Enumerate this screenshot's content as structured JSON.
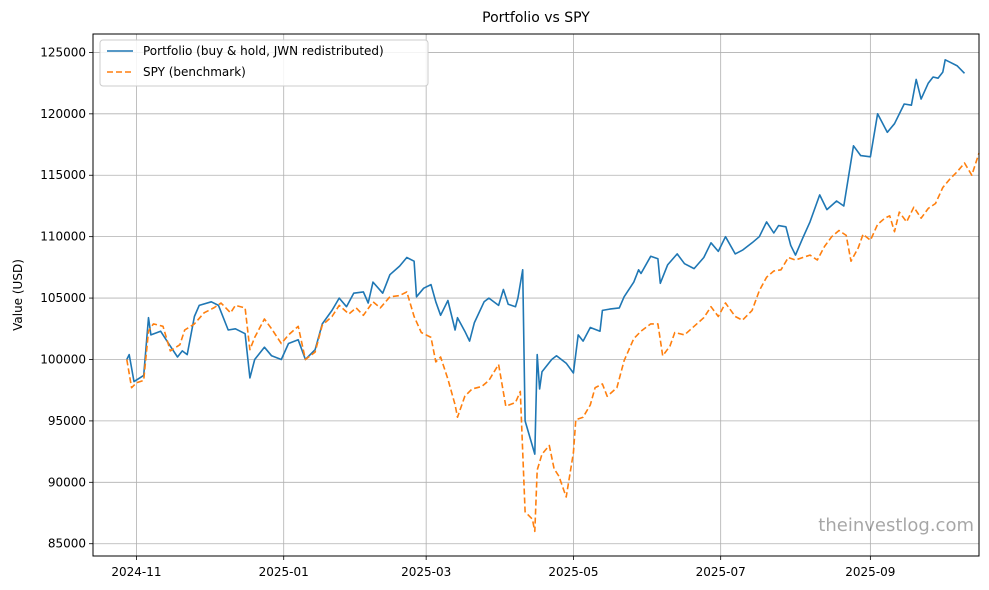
{
  "chart_data": {
    "type": "line",
    "title": "Portfolio vs SPY",
    "xlabel": "",
    "ylabel": "Value (USD)",
    "xlim": [
      "2024-10-14",
      "2025-10-16"
    ],
    "ylim": [
      84000,
      126500
    ],
    "grid": true,
    "legend_position": "upper-left",
    "x_ticks": [
      "2024-11-01",
      "2025-01-01",
      "2025-03-01",
      "2025-05-01",
      "2025-07-01",
      "2025-09-01"
    ],
    "x_tick_labels": [
      "2024-11",
      "2025-01",
      "2025-03",
      "2025-05",
      "2025-07",
      "2025-09"
    ],
    "y_ticks": [
      85000,
      90000,
      95000,
      100000,
      105000,
      110000,
      115000,
      120000,
      125000
    ],
    "y_tick_labels": [
      "85000",
      "90000",
      "95000",
      "100000",
      "105000",
      "110000",
      "115000",
      "120000",
      "125000"
    ],
    "series": [
      {
        "name": "Portfolio (buy & hold, JWN redistributed)",
        "color": "#1f77b4",
        "style": "solid",
        "points": [
          [
            "2024-10-28",
            100000
          ],
          [
            "2024-10-29",
            100400
          ],
          [
            "2024-10-31",
            98200
          ],
          [
            "2024-11-04",
            98700
          ],
          [
            "2024-11-06",
            103400
          ],
          [
            "2024-11-07",
            102000
          ],
          [
            "2024-11-11",
            102300
          ],
          [
            "2024-11-14",
            101400
          ],
          [
            "2024-11-18",
            100200
          ],
          [
            "2024-11-20",
            100700
          ],
          [
            "2024-11-22",
            100400
          ],
          [
            "2024-11-25",
            103500
          ],
          [
            "2024-11-27",
            104400
          ],
          [
            "2024-12-02",
            104700
          ],
          [
            "2024-12-05",
            104400
          ],
          [
            "2024-12-09",
            102400
          ],
          [
            "2024-12-12",
            102500
          ],
          [
            "2024-12-16",
            102100
          ],
          [
            "2024-12-18",
            98500
          ],
          [
            "2024-12-20",
            100000
          ],
          [
            "2024-12-24",
            101000
          ],
          [
            "2024-12-27",
            100300
          ],
          [
            "2024-12-31",
            100000
          ],
          [
            "2025-01-03",
            101300
          ],
          [
            "2025-01-07",
            101600
          ],
          [
            "2025-01-10",
            100000
          ],
          [
            "2025-01-14",
            100800
          ],
          [
            "2025-01-17",
            102900
          ],
          [
            "2025-01-21",
            104000
          ],
          [
            "2025-01-24",
            105000
          ],
          [
            "2025-01-27",
            104300
          ],
          [
            "2025-01-30",
            105400
          ],
          [
            "2025-02-03",
            105500
          ],
          [
            "2025-02-05",
            104600
          ],
          [
            "2025-02-07",
            106300
          ],
          [
            "2025-02-11",
            105400
          ],
          [
            "2025-02-14",
            106900
          ],
          [
            "2025-02-18",
            107600
          ],
          [
            "2025-02-21",
            108300
          ],
          [
            "2025-02-24",
            108000
          ],
          [
            "2025-02-25",
            105100
          ],
          [
            "2025-02-28",
            105800
          ],
          [
            "2025-03-03",
            106100
          ],
          [
            "2025-03-05",
            104700
          ],
          [
            "2025-03-07",
            103600
          ],
          [
            "2025-03-10",
            104800
          ],
          [
            "2025-03-13",
            102400
          ],
          [
            "2025-03-14",
            103400
          ],
          [
            "2025-03-17",
            102300
          ],
          [
            "2025-03-19",
            101500
          ],
          [
            "2025-03-21",
            103000
          ],
          [
            "2025-03-25",
            104700
          ],
          [
            "2025-03-27",
            105000
          ],
          [
            "2025-03-31",
            104400
          ],
          [
            "2025-04-02",
            105700
          ],
          [
            "2025-04-04",
            104500
          ],
          [
            "2025-04-07",
            104300
          ],
          [
            "2025-04-08",
            105000
          ],
          [
            "2025-04-10",
            107300
          ],
          [
            "2025-04-11",
            95000
          ],
          [
            "2025-04-15",
            92300
          ],
          [
            "2025-04-16",
            100400
          ],
          [
            "2025-04-17",
            97600
          ],
          [
            "2025-04-18",
            99000
          ],
          [
            "2025-04-22",
            100000
          ],
          [
            "2025-04-24",
            100300
          ],
          [
            "2025-04-28",
            99700
          ],
          [
            "2025-05-01",
            98900
          ],
          [
            "2025-05-03",
            102000
          ],
          [
            "2025-05-05",
            101500
          ],
          [
            "2025-05-08",
            102600
          ],
          [
            "2025-05-12",
            102300
          ],
          [
            "2025-05-13",
            104000
          ],
          [
            "2025-05-16",
            104100
          ],
          [
            "2025-05-20",
            104200
          ],
          [
            "2025-05-22",
            105100
          ],
          [
            "2025-05-26",
            106300
          ],
          [
            "2025-05-28",
            107300
          ],
          [
            "2025-05-29",
            107000
          ],
          [
            "2025-06-02",
            108400
          ],
          [
            "2025-06-05",
            108200
          ],
          [
            "2025-06-06",
            106200
          ],
          [
            "2025-06-09",
            107700
          ],
          [
            "2025-06-13",
            108600
          ],
          [
            "2025-06-16",
            107800
          ],
          [
            "2025-06-20",
            107400
          ],
          [
            "2025-06-24",
            108300
          ],
          [
            "2025-06-27",
            109500
          ],
          [
            "2025-06-30",
            108800
          ],
          [
            "2025-07-03",
            110000
          ],
          [
            "2025-07-07",
            108600
          ],
          [
            "2025-07-10",
            108900
          ],
          [
            "2025-07-14",
            109500
          ],
          [
            "2025-07-17",
            110000
          ],
          [
            "2025-07-20",
            111200
          ],
          [
            "2025-07-23",
            110300
          ],
          [
            "2025-07-25",
            110900
          ],
          [
            "2025-07-28",
            110800
          ],
          [
            "2025-07-30",
            109300
          ],
          [
            "2025-08-01",
            108500
          ],
          [
            "2025-08-04",
            109900
          ],
          [
            "2025-08-07",
            111200
          ],
          [
            "2025-08-11",
            113400
          ],
          [
            "2025-08-14",
            112200
          ],
          [
            "2025-08-18",
            112900
          ],
          [
            "2025-08-21",
            112500
          ],
          [
            "2025-08-25",
            117400
          ],
          [
            "2025-08-28",
            116600
          ],
          [
            "2025-09-01",
            116500
          ],
          [
            "2025-09-04",
            120000
          ],
          [
            "2025-09-08",
            118500
          ],
          [
            "2025-09-11",
            119200
          ],
          [
            "2025-09-15",
            120800
          ],
          [
            "2025-09-18",
            120700
          ],
          [
            "2025-09-20",
            122800
          ],
          [
            "2025-09-22",
            121200
          ],
          [
            "2025-09-25",
            122500
          ],
          [
            "2025-09-27",
            123000
          ],
          [
            "2025-09-29",
            122900
          ],
          [
            "2025-10-01",
            123400
          ],
          [
            "2025-10-02",
            124400
          ],
          [
            "2025-10-04",
            124200
          ],
          [
            "2025-10-07",
            123900
          ],
          [
            "2025-10-10",
            123300
          ]
        ]
      },
      {
        "name": "SPY (benchmark)",
        "color": "#ff7f0e",
        "style": "dashed",
        "points": [
          [
            "2024-10-28",
            100000
          ],
          [
            "2024-10-30",
            97700
          ],
          [
            "2024-11-01",
            98100
          ],
          [
            "2024-11-04",
            98300
          ],
          [
            "2024-11-06",
            102300
          ],
          [
            "2024-11-08",
            102900
          ],
          [
            "2024-11-12",
            102700
          ],
          [
            "2024-11-15",
            100700
          ],
          [
            "2024-11-19",
            101200
          ],
          [
            "2024-11-21",
            102400
          ],
          [
            "2024-11-25",
            102900
          ],
          [
            "2024-11-29",
            103800
          ],
          [
            "2024-12-03",
            104200
          ],
          [
            "2024-12-06",
            104600
          ],
          [
            "2024-12-10",
            103800
          ],
          [
            "2024-12-12",
            104400
          ],
          [
            "2024-12-16",
            104200
          ],
          [
            "2024-12-18",
            100800
          ],
          [
            "2024-12-20",
            101800
          ],
          [
            "2024-12-24",
            103300
          ],
          [
            "2024-12-27",
            102500
          ],
          [
            "2024-12-31",
            101300
          ],
          [
            "2025-01-03",
            102000
          ],
          [
            "2025-01-07",
            102700
          ],
          [
            "2025-01-10",
            100000
          ],
          [
            "2025-01-14",
            100600
          ],
          [
            "2025-01-17",
            102800
          ],
          [
            "2025-01-21",
            103500
          ],
          [
            "2025-01-24",
            104400
          ],
          [
            "2025-01-28",
            103700
          ],
          [
            "2025-01-31",
            104200
          ],
          [
            "2025-02-03",
            103600
          ],
          [
            "2025-02-07",
            104700
          ],
          [
            "2025-02-10",
            104200
          ],
          [
            "2025-02-14",
            105100
          ],
          [
            "2025-02-18",
            105200
          ],
          [
            "2025-02-21",
            105500
          ],
          [
            "2025-02-24",
            103500
          ],
          [
            "2025-02-27",
            102200
          ],
          [
            "2025-03-03",
            101800
          ],
          [
            "2025-03-05",
            99800
          ],
          [
            "2025-03-07",
            100200
          ],
          [
            "2025-03-10",
            98400
          ],
          [
            "2025-03-13",
            96300
          ],
          [
            "2025-03-14",
            95300
          ],
          [
            "2025-03-17",
            97000
          ],
          [
            "2025-03-20",
            97600
          ],
          [
            "2025-03-24",
            97800
          ],
          [
            "2025-03-27",
            98300
          ],
          [
            "2025-03-31",
            99600
          ],
          [
            "2025-04-03",
            96200
          ],
          [
            "2025-04-07",
            96500
          ],
          [
            "2025-04-09",
            97400
          ],
          [
            "2025-04-11",
            87600
          ],
          [
            "2025-04-14",
            87000
          ],
          [
            "2025-04-15",
            86000
          ],
          [
            "2025-04-16",
            91000
          ],
          [
            "2025-04-18",
            92300
          ],
          [
            "2025-04-21",
            93000
          ],
          [
            "2025-04-23",
            91100
          ],
          [
            "2025-04-25",
            90500
          ],
          [
            "2025-04-28",
            88800
          ],
          [
            "2025-05-01",
            92400
          ],
          [
            "2025-05-02",
            95100
          ],
          [
            "2025-05-05",
            95300
          ],
          [
            "2025-05-08",
            96300
          ],
          [
            "2025-05-10",
            97700
          ],
          [
            "2025-05-13",
            98000
          ],
          [
            "2025-05-15",
            97000
          ],
          [
            "2025-05-19",
            97700
          ],
          [
            "2025-05-22",
            99900
          ],
          [
            "2025-05-26",
            101700
          ],
          [
            "2025-05-29",
            102300
          ],
          [
            "2025-06-02",
            102900
          ],
          [
            "2025-06-05",
            102900
          ],
          [
            "2025-06-07",
            100300
          ],
          [
            "2025-06-10",
            101100
          ],
          [
            "2025-06-12",
            102200
          ],
          [
            "2025-06-16",
            102000
          ],
          [
            "2025-06-20",
            102700
          ],
          [
            "2025-06-24",
            103400
          ],
          [
            "2025-06-27",
            104300
          ],
          [
            "2025-06-30",
            103500
          ],
          [
            "2025-07-03",
            104600
          ],
          [
            "2025-07-07",
            103500
          ],
          [
            "2025-07-10",
            103200
          ],
          [
            "2025-07-14",
            104000
          ],
          [
            "2025-07-17",
            105600
          ],
          [
            "2025-07-20",
            106700
          ],
          [
            "2025-07-23",
            107200
          ],
          [
            "2025-07-26",
            107300
          ],
          [
            "2025-07-29",
            108300
          ],
          [
            "2025-08-01",
            108100
          ],
          [
            "2025-08-04",
            108300
          ],
          [
            "2025-08-07",
            108500
          ],
          [
            "2025-08-10",
            108100
          ],
          [
            "2025-08-13",
            109200
          ],
          [
            "2025-08-16",
            110000
          ],
          [
            "2025-08-19",
            110500
          ],
          [
            "2025-08-22",
            110100
          ],
          [
            "2025-08-24",
            108000
          ],
          [
            "2025-08-27",
            109100
          ],
          [
            "2025-08-29",
            110200
          ],
          [
            "2025-09-01",
            109700
          ],
          [
            "2025-09-04",
            111000
          ],
          [
            "2025-09-07",
            111500
          ],
          [
            "2025-09-09",
            111700
          ],
          [
            "2025-09-11",
            110400
          ],
          [
            "2025-09-13",
            112000
          ],
          [
            "2025-09-16",
            111200
          ],
          [
            "2025-09-19",
            112400
          ],
          [
            "2025-09-22",
            111500
          ],
          [
            "2025-09-25",
            112300
          ],
          [
            "2025-09-28",
            112700
          ],
          [
            "2025-10-01",
            114000
          ],
          [
            "2025-10-04",
            114700
          ],
          [
            "2025-10-07",
            115300
          ],
          [
            "2025-10-10",
            116000
          ],
          [
            "2025-10-13",
            115000
          ],
          [
            "2025-10-16",
            116800
          ]
        ]
      }
    ]
  },
  "watermark": "theinvestlog.com"
}
